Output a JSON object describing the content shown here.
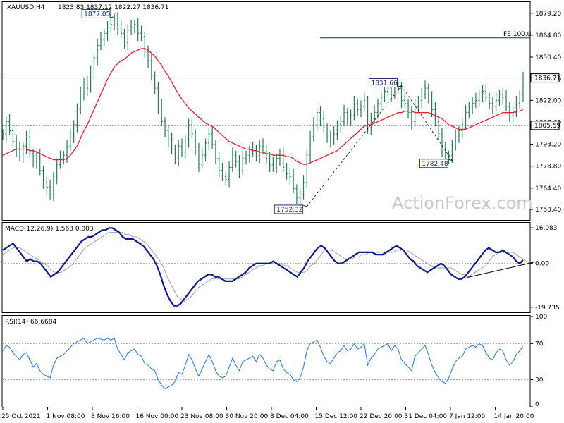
{
  "chart_data": {
    "type": "line",
    "symbol": "XAUUSD,H4",
    "ohlc_label": "1823.83 1837.12 1822.27 1836.71",
    "watermark": "ActionForex.com",
    "x_labels": [
      "25 Oct 2021",
      "1 Nov 08:00",
      "8 Nov 16:00",
      "16 Nov 00:00",
      "23 Nov 08:00",
      "30 Nov 20:00",
      "8 Dec 04:00",
      "15 Dec 12:00",
      "22 Dec 20:00",
      "31 Dec 04:00",
      "7 Jan 12:00",
      "14 Jan 20:00"
    ],
    "price": {
      "ylim": [
        1743.5,
        1886.5
      ],
      "ticks": [
        1879.2,
        1864.8,
        1850.4,
        1836.0,
        1822.0,
        1807.6,
        1793.2,
        1778.8,
        1764.4,
        1750.4
      ],
      "ticks_text": [
        "1879.20",
        "1864.80",
        "1850.40",
        "1836.00",
        "1822.00",
        "1807.60",
        "1793.20",
        "1778.80",
        "1764.40",
        "1750.40"
      ],
      "close": [
        1800,
        1808,
        1802,
        1795,
        1790,
        1785,
        1792,
        1798,
        1787,
        1782,
        1785,
        1776,
        1768,
        1765,
        1760,
        1772,
        1780,
        1784,
        1786,
        1792,
        1798,
        1806,
        1816,
        1826,
        1834,
        1830,
        1840,
        1850,
        1858,
        1862,
        1866,
        1870,
        1872,
        1876,
        1870,
        1866,
        1860,
        1868,
        1870,
        1872,
        1866,
        1864,
        1854,
        1848,
        1838,
        1830,
        1818,
        1808,
        1802,
        1796,
        1790,
        1784,
        1792,
        1788,
        1796,
        1806,
        1800,
        1790,
        1780,
        1786,
        1794,
        1800,
        1793,
        1784,
        1776,
        1772,
        1770,
        1778,
        1786,
        1782,
        1776,
        1784,
        1786,
        1788,
        1790,
        1786,
        1792,
        1790,
        1784,
        1780,
        1778,
        1784,
        1786,
        1778,
        1774,
        1772,
        1764,
        1758,
        1760,
        1768,
        1786,
        1798,
        1806,
        1814,
        1810,
        1804,
        1798,
        1796,
        1800,
        1806,
        1808,
        1814,
        1810,
        1812,
        1820,
        1816,
        1818,
        1822,
        1804,
        1810,
        1814,
        1820,
        1824,
        1828,
        1830,
        1826,
        1832,
        1830,
        1822,
        1820,
        1814,
        1808,
        1818,
        1822,
        1826,
        1830,
        1824,
        1816,
        1808,
        1800,
        1790,
        1784,
        1786,
        1792,
        1798,
        1802,
        1806,
        1814,
        1818,
        1820,
        1822,
        1826,
        1828,
        1824,
        1820,
        1818,
        1822,
        1826,
        1824,
        1818,
        1812,
        1814,
        1820,
        1826,
        1836.71
      ],
      "ma_close": [
        1786,
        1787,
        1788,
        1789,
        1790,
        1790,
        1790,
        1790,
        1789,
        1789,
        1788,
        1787,
        1786,
        1785,
        1784,
        1783,
        1783,
        1783,
        1783,
        1784,
        1786,
        1789,
        1792,
        1797,
        1802,
        1806,
        1811,
        1816,
        1821,
        1826,
        1831,
        1836,
        1840,
        1844,
        1846,
        1848,
        1849,
        1851,
        1853,
        1854,
        1855,
        1856,
        1856,
        1855,
        1853,
        1851,
        1848,
        1845,
        1841,
        1838,
        1834,
        1830,
        1826,
        1823,
        1820,
        1817,
        1815,
        1813,
        1811,
        1809,
        1807,
        1806,
        1805,
        1803,
        1801,
        1799,
        1797,
        1795,
        1794,
        1793,
        1792,
        1791,
        1790,
        1790,
        1789,
        1789,
        1788,
        1788,
        1787,
        1787,
        1786,
        1786,
        1786,
        1786,
        1785,
        1785,
        1784,
        1782,
        1781,
        1780,
        1780,
        1781,
        1782,
        1783,
        1784,
        1785,
        1786,
        1787,
        1788,
        1789,
        1791,
        1793,
        1795,
        1797,
        1799,
        1801,
        1803,
        1805,
        1806,
        1806,
        1807,
        1808,
        1809,
        1810,
        1811,
        1812,
        1813,
        1814,
        1814,
        1815,
        1815,
        1815,
        1814,
        1814,
        1814,
        1814,
        1814,
        1813,
        1812,
        1811,
        1810,
        1808,
        1806,
        1805,
        1804,
        1803,
        1803,
        1803,
        1804,
        1805,
        1806,
        1807,
        1808,
        1809,
        1810,
        1811,
        1812,
        1813,
        1814,
        1814,
        1814,
        1814,
        1815,
        1815,
        1816
      ],
      "hlines": [
        {
          "value": 1863,
          "label": "FE 100.0"
        }
      ],
      "current_line": {
        "value": 1836.71,
        "label": "1836.71"
      },
      "dotted_line": {
        "value": 1805.59,
        "label": "1805.59"
      },
      "annotations": [
        {
          "label": "1877.05",
          "index": 33,
          "value": 1877.05
        },
        {
          "label": "1752.32",
          "index": 90,
          "value": 1752.32
        },
        {
          "label": "1831.66",
          "index": 118,
          "value": 1831.66
        },
        {
          "label": "1782.48",
          "index": 133,
          "value": 1782.48
        }
      ]
    },
    "macd": {
      "label": "MACD(12,26,9) 1.568 0.003",
      "ylim": [
        -22,
        18
      ],
      "ticks_text": [
        "16.083",
        "0.00",
        "-19.735"
      ],
      "ticks": [
        16.083,
        0.0,
        -19.735
      ],
      "values": [
        6,
        7,
        8,
        9,
        7,
        5,
        3,
        1,
        2,
        1,
        1,
        0,
        -2,
        -4,
        -6,
        -5,
        -4,
        -2,
        0,
        2,
        4,
        6,
        8,
        10,
        11,
        12,
        12,
        13,
        14,
        15,
        15,
        16,
        16,
        15,
        14,
        12,
        11,
        11,
        11,
        10,
        9,
        8,
        6,
        4,
        2,
        -1,
        -5,
        -10,
        -14,
        -17,
        -19,
        -19,
        -18,
        -16,
        -14,
        -12,
        -10,
        -8,
        -7,
        -6,
        -5,
        -5,
        -6,
        -6,
        -7,
        -8,
        -8,
        -8,
        -7,
        -6,
        -5,
        -4,
        -2,
        -1,
        0,
        0,
        0,
        0,
        0,
        1,
        0,
        -1,
        -2,
        -3,
        -4,
        -5,
        -6,
        -4,
        -2,
        1,
        3,
        5,
        7,
        8,
        7,
        5,
        3,
        1,
        0,
        0,
        1,
        2,
        3,
        4,
        5,
        5,
        5,
        5,
        5,
        4,
        4,
        4,
        5,
        6,
        7,
        8,
        7,
        6,
        4,
        2,
        1,
        -1,
        -2,
        -3,
        -4,
        -3,
        -2,
        -1,
        0,
        -1,
        -3,
        -5,
        -6,
        -7,
        -7,
        -6,
        -4,
        -2,
        0,
        2,
        4,
        6,
        7,
        6,
        5,
        5,
        6,
        5,
        4,
        3,
        1,
        0,
        1.568
      ],
      "signal": [
        4,
        5,
        6,
        7,
        7,
        7,
        6,
        5,
        4,
        3,
        2,
        1,
        0,
        -1,
        -3,
        -4,
        -4,
        -4,
        -3,
        -2,
        -1,
        1,
        3,
        5,
        7,
        8,
        9,
        10,
        11,
        12,
        13,
        14,
        14,
        14,
        14,
        14,
        13,
        13,
        12,
        12,
        11,
        10,
        9,
        7,
        5,
        3,
        1,
        -2,
        -6,
        -9,
        -12,
        -15,
        -16,
        -17,
        -16,
        -15,
        -13,
        -11,
        -10,
        -9,
        -8,
        -7,
        -7,
        -7,
        -7,
        -7,
        -7,
        -7,
        -7,
        -7,
        -6,
        -5,
        -4,
        -3,
        -2,
        -1,
        -1,
        0,
        0,
        0,
        0,
        0,
        -1,
        -1,
        -2,
        -3,
        -4,
        -4,
        -4,
        -3,
        -1,
        0,
        2,
        4,
        6,
        6,
        6,
        5,
        4,
        3,
        2,
        2,
        2,
        3,
        3,
        4,
        4,
        5,
        5,
        5,
        5,
        5,
        5,
        5,
        5,
        6,
        6,
        6,
        6,
        5,
        4,
        3,
        2,
        1,
        0,
        -1,
        -2,
        -2,
        -2,
        -2,
        -2,
        -2,
        -3,
        -4,
        -5,
        -5,
        -6,
        -5,
        -4,
        -3,
        -2,
        -1,
        1,
        3,
        4,
        5,
        5,
        5,
        5,
        5,
        4,
        3,
        2,
        1,
        0.003
      ],
      "trend_line": {
        "from": [
          144,
          -5.5
        ],
        "to": [
          155,
          0.5
        ]
      }
    },
    "rsi": {
      "label": "RSI(14) 66.6684",
      "ylim": [
        0,
        100
      ],
      "ticks": [
        100,
        70,
        30,
        0
      ],
      "ticks_text": [
        "100",
        "70",
        "30",
        "0"
      ],
      "levels": [
        70,
        30
      ],
      "values": [
        62,
        68,
        66,
        60,
        56,
        52,
        58,
        60,
        52,
        44,
        48,
        40,
        36,
        34,
        32,
        46,
        54,
        56,
        58,
        62,
        66,
        70,
        72,
        74,
        76,
        70,
        72,
        74,
        76,
        75,
        74,
        76,
        74,
        76,
        64,
        58,
        52,
        60,
        62,
        64,
        58,
        56,
        48,
        46,
        42,
        40,
        30,
        24,
        20,
        22,
        24,
        28,
        38,
        36,
        46,
        58,
        52,
        42,
        34,
        42,
        50,
        58,
        50,
        40,
        34,
        32,
        34,
        44,
        54,
        46,
        40,
        50,
        52,
        54,
        56,
        50,
        58,
        54,
        46,
        42,
        40,
        50,
        52,
        42,
        38,
        36,
        30,
        28,
        32,
        44,
        62,
        70,
        72,
        74,
        66,
        56,
        50,
        48,
        54,
        60,
        62,
        68,
        62,
        64,
        70,
        64,
        66,
        70,
        46,
        54,
        58,
        64,
        66,
        68,
        70,
        62,
        68,
        64,
        52,
        48,
        44,
        40,
        56,
        60,
        64,
        68,
        58,
        46,
        38,
        32,
        28,
        26,
        32,
        42,
        50,
        54,
        56,
        64,
        66,
        68,
        66,
        70,
        68,
        60,
        54,
        52,
        60,
        64,
        62,
        52,
        46,
        50,
        58,
        62,
        66.67
      ]
    }
  }
}
